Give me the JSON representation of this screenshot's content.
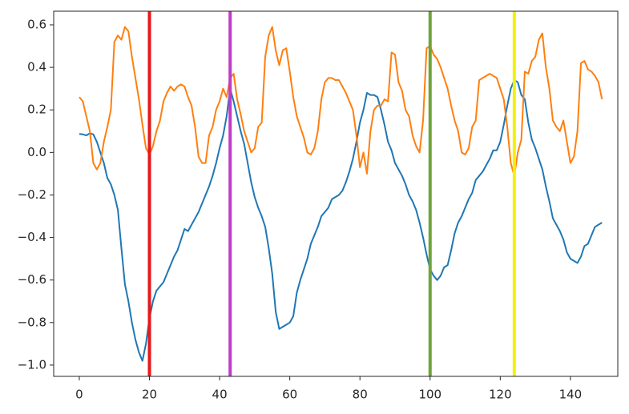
{
  "chart_data": {
    "type": "line",
    "x": [
      0,
      1,
      2,
      3,
      4,
      5,
      6,
      7,
      8,
      9,
      10,
      11,
      12,
      13,
      14,
      15,
      16,
      17,
      18,
      19,
      20,
      21,
      22,
      23,
      24,
      25,
      26,
      27,
      28,
      29,
      30,
      31,
      32,
      33,
      34,
      35,
      36,
      37,
      38,
      39,
      40,
      41,
      42,
      43,
      44,
      45,
      46,
      47,
      48,
      49,
      50,
      51,
      52,
      53,
      54,
      55,
      56,
      57,
      58,
      59,
      60,
      61,
      62,
      63,
      64,
      65,
      66,
      67,
      68,
      69,
      70,
      71,
      72,
      73,
      74,
      75,
      76,
      77,
      78,
      79,
      80,
      81,
      82,
      83,
      84,
      85,
      86,
      87,
      88,
      89,
      90,
      91,
      92,
      93,
      94,
      95,
      96,
      97,
      98,
      99,
      100,
      101,
      102,
      103,
      104,
      105,
      106,
      107,
      108,
      109,
      110,
      111,
      112,
      113,
      114,
      115,
      116,
      117,
      118,
      119,
      120,
      121,
      122,
      123,
      124,
      125,
      126,
      127,
      128,
      129,
      130,
      131,
      132,
      133,
      134,
      135,
      136,
      137,
      138,
      139,
      140,
      141,
      142,
      143,
      144,
      145,
      146,
      147,
      148,
      149
    ],
    "series": [
      {
        "color": "#1f77b4",
        "values": [
          0.087,
          0.085,
          0.08,
          0.09,
          0.085,
          0.05,
          0.0,
          -0.05,
          -0.12,
          -0.15,
          -0.2,
          -0.27,
          -0.45,
          -0.62,
          -0.7,
          -0.8,
          -0.88,
          -0.94,
          -0.98,
          -0.9,
          -0.78,
          -0.7,
          -0.65,
          -0.63,
          -0.61,
          -0.57,
          -0.53,
          -0.49,
          -0.46,
          -0.41,
          -0.36,
          -0.37,
          -0.34,
          -0.31,
          -0.28,
          -0.24,
          -0.2,
          -0.16,
          -0.11,
          -0.05,
          0.02,
          0.08,
          0.17,
          0.3,
          0.24,
          0.17,
          0.1,
          0.04,
          -0.05,
          -0.14,
          -0.21,
          -0.26,
          -0.3,
          -0.35,
          -0.45,
          -0.57,
          -0.75,
          -0.83,
          -0.82,
          -0.81,
          -0.8,
          -0.77,
          -0.66,
          -0.6,
          -0.55,
          -0.5,
          -0.43,
          -0.39,
          -0.35,
          -0.3,
          -0.28,
          -0.26,
          -0.22,
          -0.21,
          -0.2,
          -0.18,
          -0.14,
          -0.09,
          -0.03,
          0.05,
          0.14,
          0.2,
          0.28,
          0.27,
          0.27,
          0.26,
          0.2,
          0.13,
          0.05,
          0.01,
          -0.05,
          -0.08,
          -0.11,
          -0.15,
          -0.2,
          -0.23,
          -0.27,
          -0.33,
          -0.4,
          -0.48,
          -0.55,
          -0.58,
          -0.6,
          -0.58,
          -0.54,
          -0.53,
          -0.46,
          -0.38,
          -0.33,
          -0.3,
          -0.26,
          -0.22,
          -0.19,
          -0.13,
          -0.11,
          -0.09,
          -0.06,
          -0.03,
          0.01,
          0.01,
          0.05,
          0.13,
          0.22,
          0.3,
          0.34,
          0.33,
          0.27,
          0.25,
          0.14,
          0.06,
          0.02,
          -0.03,
          -0.08,
          -0.16,
          -0.23,
          -0.31,
          -0.34,
          -0.37,
          -0.41,
          -0.47,
          -0.5,
          -0.51,
          -0.52,
          -0.49,
          -0.44,
          -0.43,
          -0.39,
          -0.35,
          -0.34,
          -0.33
        ]
      },
      {
        "color": "#ff7f0e",
        "values": [
          0.26,
          0.24,
          0.17,
          0.1,
          -0.05,
          -0.08,
          -0.05,
          0.05,
          0.12,
          0.2,
          0.52,
          0.55,
          0.53,
          0.59,
          0.57,
          0.45,
          0.35,
          0.25,
          0.13,
          0.02,
          -0.01,
          0.03,
          0.1,
          0.15,
          0.24,
          0.28,
          0.31,
          0.29,
          0.31,
          0.32,
          0.31,
          0.26,
          0.22,
          0.12,
          -0.02,
          -0.05,
          -0.05,
          0.08,
          0.12,
          0.2,
          0.24,
          0.3,
          0.26,
          0.35,
          0.37,
          0.25,
          0.18,
          0.1,
          0.05,
          0.0,
          0.02,
          0.12,
          0.14,
          0.45,
          0.55,
          0.59,
          0.48,
          0.41,
          0.48,
          0.49,
          0.38,
          0.26,
          0.17,
          0.12,
          0.07,
          0.0,
          -0.01,
          0.02,
          0.1,
          0.25,
          0.33,
          0.35,
          0.35,
          0.34,
          0.34,
          0.31,
          0.28,
          0.24,
          0.2,
          0.08,
          -0.07,
          0.0,
          -0.1,
          0.1,
          0.2,
          0.22,
          0.22,
          0.25,
          0.24,
          0.47,
          0.46,
          0.33,
          0.29,
          0.2,
          0.17,
          0.08,
          0.03,
          0.0,
          0.15,
          0.49,
          0.5,
          0.46,
          0.44,
          0.4,
          0.35,
          0.3,
          0.22,
          0.15,
          0.1,
          0.0,
          -0.01,
          0.02,
          0.12,
          0.15,
          0.34,
          0.35,
          0.36,
          0.37,
          0.36,
          0.35,
          0.3,
          0.25,
          0.12,
          -0.05,
          -0.11,
          0.0,
          0.06,
          0.38,
          0.37,
          0.43,
          0.45,
          0.53,
          0.56,
          0.4,
          0.3,
          0.15,
          0.12,
          0.1,
          0.15,
          0.05,
          -0.05,
          -0.02,
          0.1,
          0.42,
          0.43,
          0.39,
          0.38,
          0.36,
          0.33,
          0.25
        ]
      }
    ],
    "vlines": {
      "x": [
        20,
        43,
        100,
        124
      ],
      "colors": [
        "#e41a1c",
        "#c03cc8",
        "#6fa33c",
        "#f2f20a"
      ]
    },
    "xlim": [
      -7.3,
      153.5
    ],
    "ylim": [
      -1.053,
      0.664
    ],
    "xticks": [
      0,
      20,
      40,
      60,
      80,
      100,
      120,
      140
    ],
    "yticks": [
      {
        "value": -1.0,
        "label": "−1.0"
      },
      {
        "value": -0.8,
        "label": "−0.8"
      },
      {
        "value": -0.6,
        "label": "−0.6"
      },
      {
        "value": -0.4,
        "label": "−0.4"
      },
      {
        "value": -0.2,
        "label": "−0.2"
      },
      {
        "value": 0.0,
        "label": "0.0"
      },
      0.2,
      0.4,
      0.6
    ]
  }
}
